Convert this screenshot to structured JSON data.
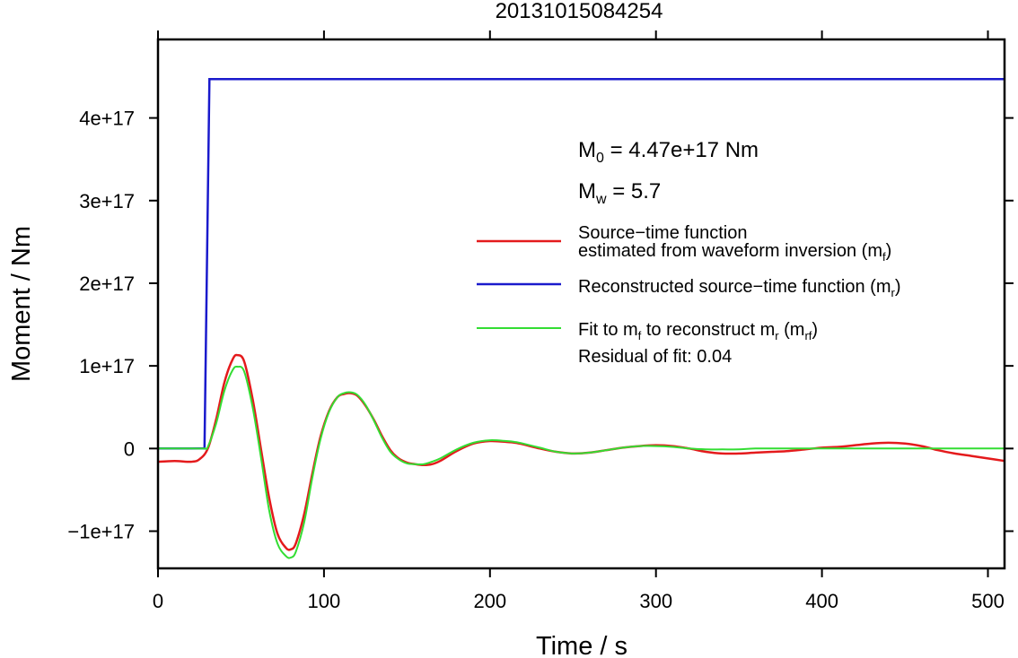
{
  "chart_data": {
    "type": "line",
    "title": "20131015084254",
    "xlabel": "Time / s",
    "ylabel": "Moment / Nm",
    "xlim": [
      0,
      510
    ],
    "ylim": [
      -1.45e+17,
      4.95e+17
    ],
    "x_ticks": [
      0,
      100,
      200,
      300,
      400,
      500
    ],
    "x_tick_labels": [
      "0",
      "100",
      "200",
      "300",
      "400",
      "500"
    ],
    "y_ticks": [
      -1e+17,
      0,
      1e+17,
      2e+17,
      3e+17,
      4e+17
    ],
    "y_tick_labels": [
      "−1e+17",
      "0",
      "1e+17",
      "2e+17",
      "3e+17",
      "4e+17"
    ],
    "grid": false,
    "legend_position": "right",
    "annotations": {
      "m0": {
        "symbol": "M",
        "sub": "0",
        "text": " = 4.47e+17 Nm"
      },
      "mw": {
        "symbol": "M",
        "sub": "w",
        "text": " = 5.7"
      },
      "residual": "Residual of fit: 0.04"
    },
    "legend": [
      {
        "color": "#e41a1c",
        "line1": "Source−time function",
        "line2_pre": "estimated from waveform inversion (m",
        "line2_sub": "f",
        "line2_post": ")"
      },
      {
        "color": "#1a1acc",
        "pre": "Reconstructed source−time function (m",
        "sub": "r",
        "post": ")"
      },
      {
        "color": "#33dd33",
        "pre": "Fit to m",
        "sub1": "f",
        "mid": " to reconstruct m",
        "sub2": "r",
        "mid2": " (m",
        "sub3": "rf",
        "post": ")"
      }
    ],
    "series": [
      {
        "color": "#1a1acc",
        "x": [
          0,
          28,
          31,
          510
        ],
        "y": [
          0,
          0,
          4.47e+17,
          4.47e+17
        ]
      },
      {
        "color": "#e41a1c",
        "x": [
          0,
          10,
          20,
          25,
          30,
          35,
          40,
          45,
          48,
          52,
          57,
          62,
          67,
          72,
          77,
          80,
          83,
          88,
          93,
          98,
          103,
          108,
          112,
          116,
          120,
          125,
          130,
          135,
          140,
          145,
          150,
          155,
          160,
          165,
          170,
          180,
          190,
          200,
          210,
          215,
          220,
          230,
          240,
          250,
          260,
          270,
          280,
          290,
          300,
          310,
          320,
          330,
          340,
          350,
          360,
          370,
          380,
          390,
          400,
          410,
          420,
          430,
          440,
          450,
          460,
          470,
          480,
          490,
          500,
          510
        ],
        "y": [
          -1.6e+16,
          -1.5e+16,
          -1.6e+16,
          -1.3e+16,
          0,
          3.5e+16,
          8e+16,
          1.08e+17,
          1.13e+17,
          1.05e+17,
          6e+16,
          0,
          -6e+16,
          -1.03e+17,
          -1.2e+17,
          -1.22e+17,
          -1.15e+17,
          -8e+16,
          -3e+16,
          1.5e+16,
          4.5e+16,
          6.2e+16,
          6.6e+16,
          6.7e+16,
          6.4e+16,
          5.2e+16,
          3.5e+16,
          1.5e+16,
          -2000000000000000.0,
          -1.2e+16,
          -1.7e+16,
          -1.9e+16,
          -2e+16,
          -1.9e+16,
          -1.5e+16,
          -3000000000000000.0,
          6000000000000000.0,
          9000000000000000.0,
          8000000000000000.0,
          7000000000000000.0,
          5000000000000000.0,
          0,
          -4000000000000000.0,
          -6000000000000000.0,
          -5000000000000000.0,
          -2000000000000000.0,
          1000000000000000.0,
          3000000000000000.0,
          4000000000000000.0,
          3000000000000000.0,
          0,
          -4000000000000000.0,
          -6000000000000000.0,
          -6000000000000000.0,
          -5000000000000000.0,
          -4000000000000000.0,
          -3000000000000000.0,
          -1000000000000000.0,
          1000000000000000.0,
          2000000000000000.0,
          4000000000000000.0,
          6000000000000000.0,
          7000000000000000.0,
          6000000000000000.0,
          3000000000000000.0,
          -2000000000000000.0,
          -6000000000000000.0,
          -9000000000000000.0,
          -1.2e+16,
          -1.5e+16
        ]
      },
      {
        "color": "#33dd33",
        "x": [
          0,
          20,
          28,
          30,
          35,
          40,
          45,
          48,
          52,
          57,
          62,
          67,
          72,
          77,
          80,
          83,
          88,
          93,
          98,
          103,
          108,
          112,
          116,
          120,
          125,
          130,
          135,
          140,
          145,
          150,
          155,
          160,
          165,
          170,
          180,
          190,
          200,
          210,
          215,
          220,
          230,
          240,
          250,
          260,
          270,
          280,
          290,
          300,
          310,
          320,
          330,
          340,
          350,
          360,
          380,
          400,
          420,
          440,
          460,
          480,
          500,
          510
        ],
        "y": [
          0,
          0,
          0,
          2000000000000000.0,
          3e+16,
          7e+16,
          9.5e+16,
          9.9e+16,
          9.3e+16,
          5e+16,
          -1e+16,
          -7.5e+16,
          -1.15e+17,
          -1.3e+17,
          -1.32e+17,
          -1.25e+17,
          -9e+16,
          -3.5e+16,
          1.2e+16,
          4.4e+16,
          6.2e+16,
          6.7e+16,
          6.8e+16,
          6.5e+16,
          5.3e+16,
          3.4e+16,
          1.3e+16,
          -4000000000000000.0,
          -1.3e+16,
          -1.8e+16,
          -1.9e+16,
          -1.9e+16,
          -1.6e+16,
          -1.2e+16,
          -1000000000000000.0,
          7000000000000000.0,
          1e+16,
          9000000000000000.0,
          8000000000000000.0,
          6000000000000000.0,
          1000000000000000.0,
          -4000000000000000.0,
          -6000000000000000.0,
          -5000000000000000.0,
          -2000000000000000.0,
          1000000000000000.0,
          3000000000000000.0,
          3000000000000000.0,
          2000000000000000.0,
          0,
          -1000000000000000.0,
          -1000000000000000.0,
          -1000000000000000.0,
          0,
          0,
          0,
          0,
          0,
          0,
          0,
          0,
          0
        ]
      }
    ]
  }
}
